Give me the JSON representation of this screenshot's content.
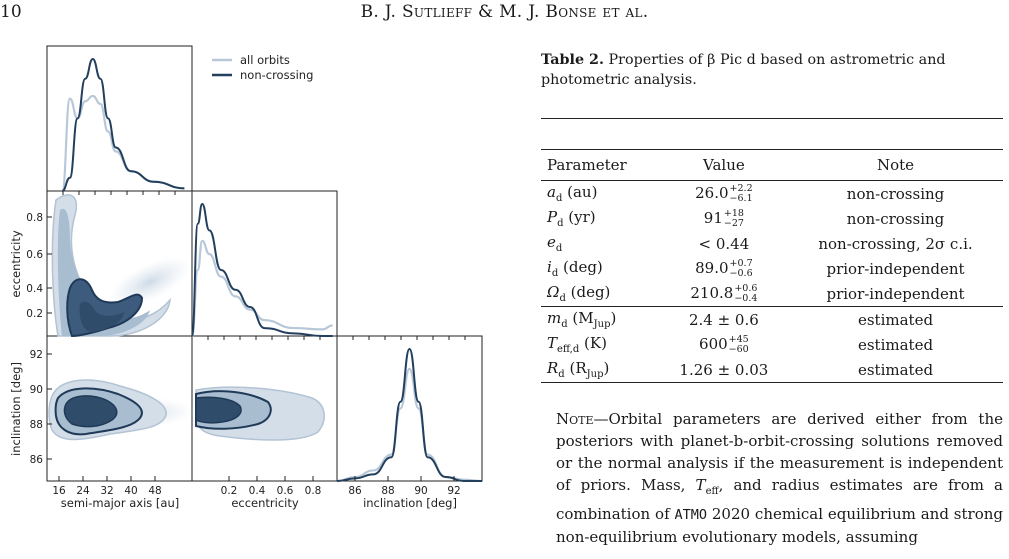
{
  "header": {
    "page_number": "10",
    "running_head": "B. J. Sutlieff & M. J. Bonse et al."
  },
  "figure": {
    "legend": [
      "all orbits",
      "non-crossing"
    ],
    "colors": {
      "all_orbits": "#b8c8d8",
      "non_crossing": "#233f5e",
      "fill_outer": "#c9d6e3",
      "fill_inner": "#98afc6",
      "fill_core": "#3b5a7a"
    },
    "x_axis_labels": [
      "semi-major axis [au]",
      "eccentricity",
      "inclination [deg]"
    ],
    "y_axis_labels": [
      "eccentricity",
      "inclination [deg]"
    ],
    "ticks": {
      "sma": [
        "16",
        "24",
        "32",
        "40",
        "48"
      ],
      "ecc_x": [
        "0.2",
        "0.4",
        "0.6",
        "0.8"
      ],
      "inc_x": [
        "86",
        "88",
        "90",
        "92"
      ],
      "ecc_y": [
        "0.8",
        "0.6",
        "0.4",
        "0.2"
      ],
      "inc_y": [
        "92",
        "90",
        "88",
        "86"
      ]
    }
  },
  "chart_data": [
    {
      "type": "line",
      "title": "",
      "xlabel": "",
      "ylabel": "",
      "xlim": [
        12,
        50
      ],
      "series": [
        {
          "name": "all orbits",
          "x": [
            16,
            18,
            20,
            22,
            24,
            26,
            28,
            30,
            34,
            40,
            48
          ],
          "y": [
            0.0,
            0.7,
            0.55,
            0.68,
            0.72,
            0.66,
            0.45,
            0.3,
            0.15,
            0.07,
            0.02
          ]
        },
        {
          "name": "non-crossing",
          "x": [
            16,
            18,
            20,
            22,
            24,
            26,
            28,
            30,
            34,
            40,
            48
          ],
          "y": [
            0.0,
            0.1,
            0.55,
            0.85,
            1.0,
            0.85,
            0.55,
            0.33,
            0.15,
            0.07,
            0.02
          ]
        }
      ]
    },
    {
      "type": "line",
      "title": "",
      "xlabel": "",
      "ylabel": "",
      "xlim": [
        0,
        1
      ],
      "series": [
        {
          "name": "all orbits",
          "x": [
            0.0,
            0.04,
            0.07,
            0.12,
            0.2,
            0.3,
            0.4,
            0.5,
            0.7,
            0.9,
            0.97
          ],
          "y": [
            0.0,
            0.5,
            0.72,
            0.62,
            0.45,
            0.3,
            0.2,
            0.12,
            0.06,
            0.05,
            0.08
          ]
        },
        {
          "name": "non-crossing",
          "x": [
            0.0,
            0.04,
            0.07,
            0.12,
            0.2,
            0.3,
            0.4,
            0.5,
            0.7,
            0.9,
            0.97
          ],
          "y": [
            0.0,
            0.85,
            1.0,
            0.8,
            0.5,
            0.35,
            0.22,
            0.06,
            0.02,
            0.0,
            0.0
          ]
        }
      ]
    },
    {
      "type": "line",
      "title": "",
      "xlabel": "",
      "ylabel": "",
      "xlim": [
        85,
        93
      ],
      "series": [
        {
          "name": "all orbits",
          "x": [
            85,
            86,
            87,
            88,
            88.5,
            89,
            89.5,
            90,
            91,
            92,
            93
          ],
          "y": [
            0.0,
            0.03,
            0.08,
            0.2,
            0.55,
            0.85,
            0.55,
            0.2,
            0.03,
            0.01,
            0.0
          ]
        },
        {
          "name": "non-crossing",
          "x": [
            85,
            86,
            87,
            88,
            88.5,
            89,
            89.5,
            90,
            91,
            92,
            93
          ],
          "y": [
            0.0,
            0.02,
            0.05,
            0.18,
            0.6,
            1.0,
            0.6,
            0.18,
            0.03,
            0.0,
            0.0
          ]
        }
      ]
    }
  ],
  "table": {
    "caption_label": "Table 2.",
    "caption_text": "Properties of β Pic d based on astrometric and photometric analysis.",
    "headers": [
      "Parameter",
      "Value",
      "Note"
    ],
    "rows": [
      {
        "sym": "a",
        "sub": "d",
        "unit": "(au)",
        "val": "26.0",
        "up": "+2.2",
        "dn": "−6.1",
        "note": "non-crossing"
      },
      {
        "sym": "P",
        "sub": "d",
        "unit": "(yr)",
        "val": "91",
        "up": "+18",
        "dn": "−27",
        "note": "non-crossing"
      },
      {
        "sym": "e",
        "sub": "d",
        "unit": "",
        "val": "< 0.44",
        "up": "",
        "dn": "",
        "note": "non-crossing, 2σ c.i."
      },
      {
        "sym": "i",
        "sub": "d",
        "unit": "(deg)",
        "val": "89.0",
        "up": "+0.7",
        "dn": "−0.6",
        "note": "prior-independent"
      },
      {
        "sym": "Ω",
        "sub": "d",
        "unit": "(deg)",
        "val": "210.8",
        "up": "+0.6",
        "dn": "−0.4",
        "note": "prior-independent"
      },
      {
        "sym": "m",
        "sub": "d",
        "unit": "(M",
        "unit_sub": "Jup",
        "unit_end": ")",
        "val": "2.4 ± 0.6",
        "up": "",
        "dn": "",
        "note": "estimated"
      },
      {
        "sym": "T",
        "sub": "eff,d",
        "unit": "(K)",
        "val": "600",
        "up": "+45",
        "dn": "−60",
        "note": "estimated"
      },
      {
        "sym": "R",
        "sub": "d",
        "unit": "(R",
        "unit_sub": "Jup",
        "unit_end": ")",
        "val": "1.26 ± 0.03",
        "up": "",
        "dn": "",
        "note": "estimated"
      }
    ],
    "note_lead": "Note",
    "note_text_1": "—Orbital parameters are derived either from the posteriors with planet-b-orbit-crossing solutions removed or the normal analysis if the measurement is independent of priors. Mass,",
    "note_teff": "T",
    "note_teff_sub": "eff",
    "note_text_2": ", and radius estimates are from a combination of",
    "note_mono": "ATMO",
    "note_text_3": " 2020 chemical equilibrium and strong non-equilibrium evolutionary models, assuming"
  }
}
